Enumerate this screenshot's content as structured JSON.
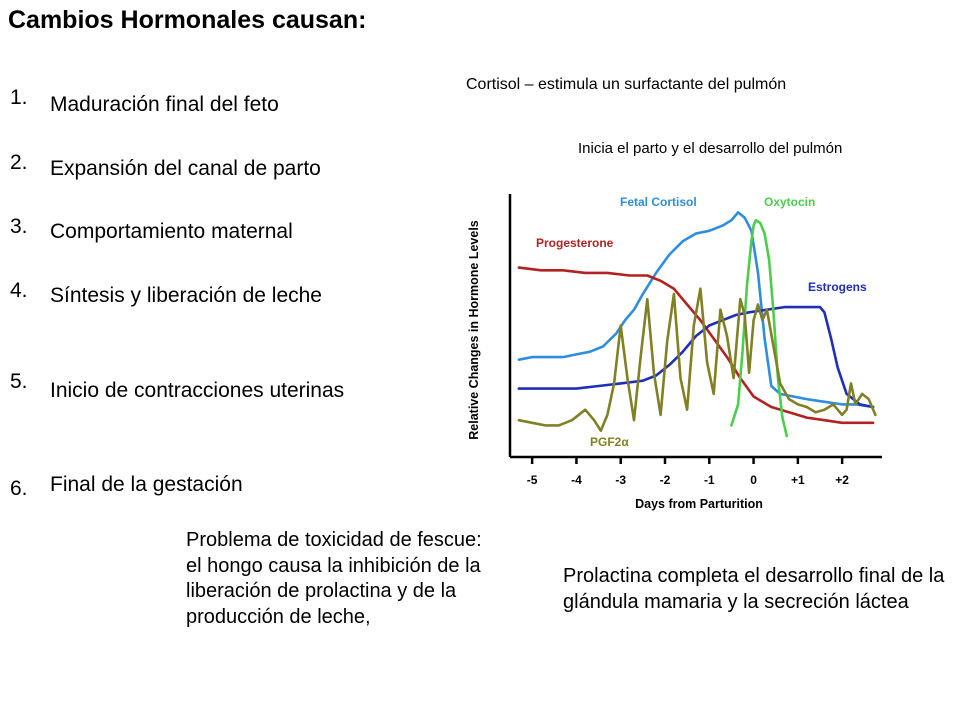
{
  "slide": {
    "title": "Cambios Hormonales causan:",
    "list": [
      {
        "number": "1.",
        "text": "Maduración final del feto"
      },
      {
        "number": "2.",
        "text": "Expansión del canal de parto"
      },
      {
        "number": "3.",
        "text": "Comportamiento maternal"
      },
      {
        "number": "4.",
        "text": "Síntesis y liberación de leche"
      },
      {
        "number": "5.",
        "text": "Inicio de contracciones uterinas"
      },
      {
        "number": "6.",
        "text": "Final de la gestación"
      }
    ],
    "cortisol_note": "Cortisol – estimula un surfactante del pulmón",
    "lung_note": "Inicia el parto y el desarrollo del pulmón",
    "fescue_note": "Problema de toxicidad de fescue:  el hongo causa la inhibición de la liberación de prolactina y de la producción de leche,",
    "prolactin_note": "Prolactina completa el desarrollo final de la glándula mamaria y la secreción láctea"
  },
  "chart_data": {
    "type": "line",
    "title": "",
    "xlabel": "Days from Parturition",
    "ylabel": "Relative Changes in Hormone Levels",
    "xlim": [
      -5.5,
      2.9
    ],
    "ylim": [
      0,
      100
    ],
    "x_ticks": [
      {
        "value": -5,
        "label": "-5"
      },
      {
        "value": -4,
        "label": "-4"
      },
      {
        "value": -3,
        "label": "-3"
      },
      {
        "value": -2,
        "label": "-2"
      },
      {
        "value": -1,
        "label": "-1"
      },
      {
        "value": 0,
        "label": "0"
      },
      {
        "value": 1,
        "label": "+1"
      },
      {
        "value": 2,
        "label": "+2"
      }
    ],
    "series": [
      {
        "name": "Fetal Cortisol",
        "color": "#2f8de0",
        "x": [
          -5.3,
          -5.0,
          -4.6,
          -4.3,
          -4.0,
          -3.7,
          -3.4,
          -3.1,
          -2.9,
          -2.7,
          -2.5,
          -2.2,
          -1.9,
          -1.6,
          -1.3,
          -1.0,
          -0.7,
          -0.5,
          -0.35,
          -0.2,
          -0.05,
          0.1,
          0.25,
          0.4,
          0.6,
          0.9,
          1.2,
          1.6,
          2.0,
          2.3,
          2.7
        ],
        "y": [
          37,
          38,
          38,
          38,
          39,
          40,
          42,
          47,
          52,
          56,
          62,
          70,
          77,
          82,
          85,
          86,
          88,
          90,
          93,
          91,
          86,
          70,
          45,
          27,
          24,
          23,
          22,
          21,
          20,
          20,
          19
        ]
      },
      {
        "name": "Progesterone",
        "color": "#b22222",
        "x": [
          -5.3,
          -4.8,
          -4.3,
          -3.8,
          -3.3,
          -2.8,
          -2.4,
          -2.1,
          -1.8,
          -1.5,
          -1.2,
          -0.9,
          -0.6,
          -0.3,
          0.0,
          0.4,
          0.8,
          1.2,
          1.6,
          2.0,
          2.4,
          2.7
        ],
        "y": [
          72,
          71,
          71,
          70,
          70,
          69,
          69,
          67,
          64,
          58,
          52,
          45,
          38,
          30,
          23,
          19,
          17,
          15,
          14,
          13,
          13,
          13
        ]
      },
      {
        "name": "Estrogens",
        "color": "#1f2fb8",
        "x": [
          -5.3,
          -5.0,
          -4.5,
          -4.0,
          -3.5,
          -3.0,
          -2.5,
          -2.2,
          -1.9,
          -1.6,
          -1.3,
          -1.0,
          -0.7,
          -0.4,
          -0.1,
          0.3,
          0.7,
          1.1,
          1.3,
          1.5,
          1.6,
          1.75,
          1.9,
          2.1,
          2.4,
          2.7
        ],
        "y": [
          26,
          26,
          26,
          26,
          27,
          28,
          29,
          31,
          35,
          40,
          46,
          50,
          52,
          54,
          55,
          56,
          57,
          57,
          57,
          57,
          55,
          45,
          34,
          24,
          20,
          19
        ]
      },
      {
        "name": "Oxytocin",
        "color": "#4ccd4c",
        "x": [
          -0.5,
          -0.35,
          -0.25,
          -0.15,
          -0.05,
          0.0,
          0.05,
          0.15,
          0.25,
          0.35,
          0.45,
          0.55,
          0.65,
          0.75
        ],
        "y": [
          12,
          20,
          40,
          65,
          82,
          88,
          90,
          89,
          85,
          75,
          55,
          30,
          15,
          8
        ]
      },
      {
        "name": "PGF2α",
        "color": "#808024",
        "x": [
          -5.3,
          -5.0,
          -4.7,
          -4.4,
          -4.1,
          -3.8,
          -3.6,
          -3.45,
          -3.3,
          -3.15,
          -3.0,
          -2.85,
          -2.7,
          -2.55,
          -2.4,
          -2.25,
          -2.1,
          -1.95,
          -1.8,
          -1.65,
          -1.5,
          -1.35,
          -1.2,
          -1.05,
          -0.9,
          -0.75,
          -0.6,
          -0.45,
          -0.3,
          -0.2,
          -0.1,
          0.0,
          0.1,
          0.2,
          0.3,
          0.45,
          0.6,
          0.8,
          1.0,
          1.2,
          1.4,
          1.6,
          1.8,
          2.0,
          2.1,
          2.2,
          2.3,
          2.45,
          2.6,
          2.75
        ],
        "y": [
          14,
          13,
          12,
          12,
          14,
          18,
          14,
          10,
          16,
          28,
          50,
          30,
          14,
          38,
          60,
          32,
          16,
          44,
          62,
          30,
          18,
          50,
          64,
          36,
          24,
          56,
          46,
          30,
          60,
          54,
          32,
          52,
          58,
          52,
          56,
          42,
          28,
          22,
          20,
          19,
          17,
          18,
          20,
          16,
          18,
          28,
          20,
          24,
          22,
          16
        ]
      }
    ],
    "annotations": [
      {
        "text": "Fetal Cortisol",
        "color": "#2f8de0"
      },
      {
        "text": "Oxytocin",
        "color": "#4ccd4c"
      },
      {
        "text": "Progesterone",
        "color": "#b22222"
      },
      {
        "text": "Estrogens",
        "color": "#1f2fb8"
      },
      {
        "text": "PGF2α",
        "color": "#808024"
      }
    ]
  }
}
